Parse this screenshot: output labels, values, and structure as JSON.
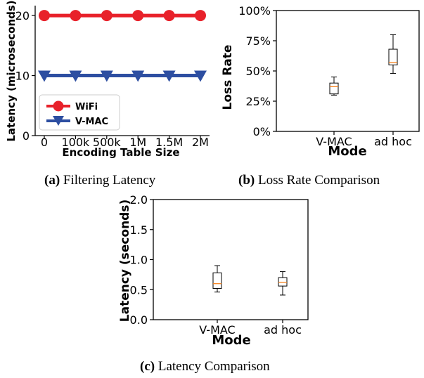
{
  "chart_data": [
    {
      "type": "line",
      "xlabel": "Encoding Table Size",
      "ylabel": "Latency (microseconds)",
      "x": [
        "0",
        "100k",
        "500k",
        "1M",
        "1.5M",
        "2M"
      ],
      "ylim": [
        0,
        22
      ],
      "yticks": [
        0,
        10,
        20
      ],
      "legend": "bottom-left",
      "grid": false,
      "series": [
        {
          "name": "WiFi",
          "values": [
            20,
            20,
            20,
            20,
            20,
            20
          ],
          "color": "#e8212a",
          "marker": "circle"
        },
        {
          "name": "V-MAC",
          "values": [
            10,
            10,
            10,
            10,
            10,
            10
          ],
          "color": "#2d4ea1",
          "marker": "triangle-down"
        }
      ]
    },
    {
      "type": "box",
      "xlabel": "Mode",
      "ylabel": "Loss Rate",
      "categories": [
        "V-MAC",
        "ad hoc"
      ],
      "ylim": [
        0,
        100
      ],
      "yticks": [
        "0%",
        "25%",
        "50%",
        "75%",
        "100%"
      ],
      "grid": false,
      "boxes": [
        {
          "min": 30,
          "q1": 31,
          "median": 37,
          "q3": 40,
          "max": 45
        },
        {
          "min": 48,
          "q1": 55,
          "median": 57,
          "q3": 68,
          "max": 80
        }
      ]
    },
    {
      "type": "box",
      "xlabel": "Mode",
      "ylabel": "Latency (seconds)",
      "categories": [
        "V-MAC",
        "ad hoc"
      ],
      "ylim": [
        0,
        2
      ],
      "yticks": [
        "0.0",
        "0.5",
        "1.0",
        "1.5",
        "2.0"
      ],
      "grid": false,
      "boxes": [
        {
          "min": 0.46,
          "q1": 0.52,
          "median": 0.6,
          "q3": 0.78,
          "max": 0.9
        },
        {
          "min": 0.41,
          "q1": 0.56,
          "median": 0.62,
          "q3": 0.7,
          "max": 0.8
        }
      ]
    }
  ],
  "captions": {
    "a": {
      "label": "(a)",
      "text": "Filtering Latency"
    },
    "b": {
      "label": "(b)",
      "text": "Loss Rate Comparison"
    },
    "c": {
      "label": "(c)",
      "text": "Latency Comparison"
    }
  },
  "colors": {
    "median": "#f5831f",
    "box": "#000000"
  }
}
